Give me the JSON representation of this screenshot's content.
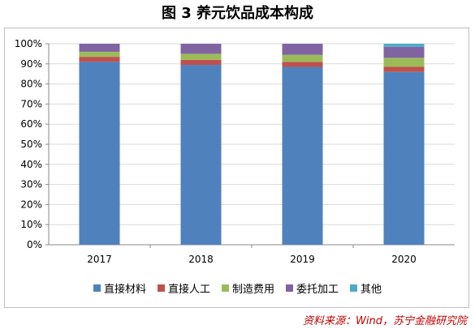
{
  "title": "图 3 养元饮品成本构成",
  "source": "资料来源：Wind，苏宁金融研究院",
  "chart_data": {
    "type": "bar",
    "stacked": true,
    "categories": [
      "2017",
      "2018",
      "2019",
      "2020"
    ],
    "series": [
      {
        "name": "直接材料",
        "color": "#4f81bd",
        "values": [
          91,
          89.5,
          88.5,
          86
        ]
      },
      {
        "name": "直接人工",
        "color": "#c0504d",
        "values": [
          2.5,
          2.5,
          2.5,
          2.5
        ]
      },
      {
        "name": "制造费用",
        "color": "#9bbb59",
        "values": [
          2.5,
          3,
          3.5,
          4.5
        ]
      },
      {
        "name": "委托加工",
        "color": "#8064a2",
        "values": [
          4,
          5,
          5.5,
          5.5
        ]
      },
      {
        "name": "其他",
        "color": "#4bacc6",
        "values": [
          0,
          0,
          0,
          1.5
        ]
      }
    ],
    "ylim": [
      0,
      100
    ],
    "yticks": [
      "0%",
      "10%",
      "20%",
      "30%",
      "40%",
      "50%",
      "60%",
      "70%",
      "80%",
      "90%",
      "100%"
    ],
    "grid": true,
    "legend": "bottom"
  }
}
